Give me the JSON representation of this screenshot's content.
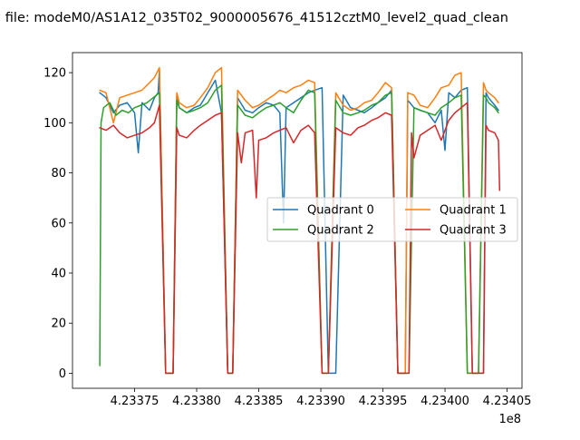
{
  "chart_data": {
    "type": "line",
    "title": "n file: modeM0/AS1A12_035T02_9000005676_41512cztM0_level2_quad_clean",
    "xlabel": "",
    "ylabel": "",
    "x_offset_label": "1e8",
    "xlim": [
      4.233718,
      4.233706
    ],
    "ylim": [
      -6,
      128
    ],
    "x_ticks": [
      {
        "value": 4.23375,
        "label": "4.23375"
      },
      {
        "value": 4.2338,
        "label": "4.23380"
      },
      {
        "value": 4.23385,
        "label": "4.23385"
      },
      {
        "value": 4.2339,
        "label": "4.23390"
      },
      {
        "value": 4.23395,
        "label": "4.23395"
      },
      {
        "value": 4.234,
        "label": "4.23400"
      },
      {
        "value": 4.23405,
        "label": "4.23405"
      }
    ],
    "y_ticks": [
      {
        "value": 0,
        "label": "0"
      },
      {
        "value": 20,
        "label": "20"
      },
      {
        "value": 40,
        "label": "40"
      },
      {
        "value": 60,
        "label": "60"
      },
      {
        "value": 80,
        "label": "80"
      },
      {
        "value": 100,
        "label": "100"
      },
      {
        "value": 120,
        "label": "120"
      }
    ],
    "grid": false,
    "legend": {
      "placement": "center-right",
      "columns": 2
    },
    "series": [
      {
        "name": "Quadrant 0",
        "color": "#1f77b4",
        "x": [
          4.233722,
          4.233727,
          4.233733,
          4.233738,
          4.233744,
          4.23375,
          4.233753,
          4.233756,
          4.233762,
          4.233766,
          4.233769,
          4.23377,
          4.233775,
          4.233781,
          4.233784,
          4.233786,
          4.233792,
          4.233798,
          4.233803,
          4.233809,
          4.233815,
          4.23382,
          4.233825,
          4.233829,
          4.233833,
          4.233839,
          4.233845,
          4.23385,
          4.233856,
          4.233862,
          4.233867,
          4.23387,
          4.233872,
          4.233878,
          4.233884,
          4.23389,
          4.233895,
          4.233901,
          4.233906,
          4.233912,
          4.233918,
          4.233924,
          4.23393,
          4.233935,
          4.233941,
          4.233946,
          4.233952,
          4.233957,
          4.233962,
          4.233968,
          4.23397,
          4.233975,
          4.23398,
          4.233986,
          4.233992,
          4.233997,
          4.234,
          4.234003,
          4.234008,
          4.234013,
          4.234018,
          4.234022,
          4.234027,
          4.234031,
          4.234033,
          4.234035,
          4.23404,
          4.234043
        ],
        "y": [
          112,
          110,
          104,
          107,
          108,
          104,
          88,
          108,
          105,
          110,
          112,
          121,
          0,
          0,
          111,
          106,
          104,
          106,
          107,
          112,
          117,
          104,
          0,
          0,
          110,
          105,
          104,
          106,
          108,
          107,
          104,
          60,
          106,
          108,
          110,
          112,
          113,
          114,
          0,
          0,
          111,
          106,
          105,
          104,
          106,
          108,
          110,
          113,
          0,
          0,
          109,
          106,
          105,
          104,
          100,
          105,
          89,
          112,
          110,
          113,
          114,
          0,
          0,
          0,
          112,
          110,
          107,
          105
        ]
      },
      {
        "name": "Quadrant 1",
        "color": "#ff7f0e",
        "x": [
          4.233722,
          4.233727,
          4.233733,
          4.233738,
          4.233744,
          4.23375,
          4.233756,
          4.233762,
          4.233766,
          4.23377,
          4.233775,
          4.233781,
          4.233784,
          4.233786,
          4.233792,
          4.233798,
          4.233803,
          4.233809,
          4.233815,
          4.23382,
          4.233825,
          4.233829,
          4.233833,
          4.233839,
          4.233845,
          4.23385,
          4.233856,
          4.233862,
          4.233867,
          4.233872,
          4.233878,
          4.233884,
          4.23389,
          4.233895,
          4.233901,
          4.233906,
          4.233912,
          4.233918,
          4.233924,
          4.23393,
          4.233935,
          4.233941,
          4.233946,
          4.233952,
          4.233957,
          4.233962,
          4.233968,
          4.23397,
          4.233975,
          4.23398,
          4.233986,
          4.233992,
          4.233997,
          4.234003,
          4.234008,
          4.234013,
          4.234018,
          4.234022,
          4.234027,
          4.234031,
          4.234033,
          4.234035,
          4.23404,
          4.234043
        ],
        "y": [
          113,
          112,
          100,
          110,
          111,
          112,
          113,
          116,
          118,
          122,
          0,
          0,
          112,
          108,
          106,
          107,
          110,
          114,
          120,
          122,
          0,
          0,
          113,
          109,
          106,
          107,
          109,
          111,
          113,
          112,
          114,
          115,
          117,
          116,
          0,
          0,
          112,
          107,
          105,
          106,
          108,
          109,
          112,
          116,
          114,
          0,
          0,
          112,
          111,
          107,
          106,
          110,
          114,
          115,
          119,
          120,
          0,
          0,
          0,
          116,
          113,
          112,
          110,
          108
        ]
      },
      {
        "name": "Quadrant 2",
        "color": "#2ca02c",
        "x": [
          4.233722,
          4.233723,
          4.233725,
          4.23373,
          4.233735,
          4.23374,
          4.233745,
          4.23375,
          4.233755,
          4.23376,
          4.233765,
          4.23377,
          4.233775,
          4.233781,
          4.233784,
          4.233786,
          4.233792,
          4.233798,
          4.233803,
          4.233809,
          4.233815,
          4.23382,
          4.233825,
          4.233829,
          4.233833,
          4.233839,
          4.233845,
          4.23385,
          4.233856,
          4.233862,
          4.233867,
          4.233872,
          4.233878,
          4.233884,
          4.23389,
          4.233895,
          4.233901,
          4.233906,
          4.233912,
          4.233918,
          4.233924,
          4.23393,
          4.233935,
          4.233941,
          4.233946,
          4.233952,
          4.233957,
          4.233962,
          4.233968,
          4.233971,
          4.233975,
          4.23398,
          4.233986,
          4.233992,
          4.233997,
          4.234003,
          4.234008,
          4.234013,
          4.234018,
          4.234022,
          4.234027,
          4.234031,
          4.234033,
          4.234035,
          4.23404,
          4.234043
        ],
        "y": [
          3,
          100,
          106,
          108,
          103,
          105,
          104,
          106,
          107,
          108,
          110,
          112,
          0,
          0,
          109,
          106,
          104,
          105,
          106,
          108,
          113,
          115,
          0,
          0,
          107,
          103,
          102,
          104,
          106,
          107,
          108,
          106,
          104,
          109,
          113,
          112,
          0,
          0,
          109,
          104,
          103,
          104,
          105,
          107,
          108,
          111,
          112,
          0,
          0,
          0,
          106,
          105,
          104,
          103,
          106,
          108,
          110,
          111,
          0,
          0,
          0,
          111,
          110,
          108,
          106,
          104
        ]
      },
      {
        "name": "Quadrant 3",
        "color": "#d62728",
        "x": [
          4.233722,
          4.233727,
          4.233733,
          4.233738,
          4.233744,
          4.23375,
          4.233756,
          4.233762,
          4.233766,
          4.23377,
          4.233775,
          4.233781,
          4.233784,
          4.233786,
          4.233792,
          4.233798,
          4.233803,
          4.233809,
          4.233815,
          4.23382,
          4.233825,
          4.233829,
          4.233833,
          4.233836,
          4.233839,
          4.233845,
          4.233848,
          4.23385,
          4.233856,
          4.233862,
          4.233867,
          4.233872,
          4.233878,
          4.233884,
          4.23389,
          4.233895,
          4.233901,
          4.233906,
          4.233912,
          4.233918,
          4.233924,
          4.23393,
          4.233935,
          4.233941,
          4.233946,
          4.233952,
          4.233957,
          4.233962,
          4.233968,
          4.233971,
          4.233973,
          4.233975,
          4.23398,
          4.233986,
          4.233992,
          4.233997,
          4.234003,
          4.234008,
          4.234013,
          4.234018,
          4.234022,
          4.234027,
          4.234031,
          4.234033,
          4.234035,
          4.23404,
          4.234043,
          4.234044
        ],
        "y": [
          98,
          97,
          99,
          96,
          94,
          95,
          96,
          98,
          100,
          107,
          0,
          0,
          98,
          95,
          94,
          97,
          99,
          101,
          103,
          104,
          0,
          0,
          96,
          84,
          96,
          97,
          70,
          93,
          94,
          96,
          97,
          98,
          92,
          97,
          99,
          96,
          0,
          0,
          98,
          96,
          95,
          98,
          99,
          101,
          102,
          104,
          103,
          0,
          0,
          0,
          96,
          86,
          95,
          97,
          99,
          93,
          101,
          104,
          106,
          108,
          0,
          0,
          0,
          99,
          97,
          96,
          93,
          73
        ]
      }
    ]
  }
}
